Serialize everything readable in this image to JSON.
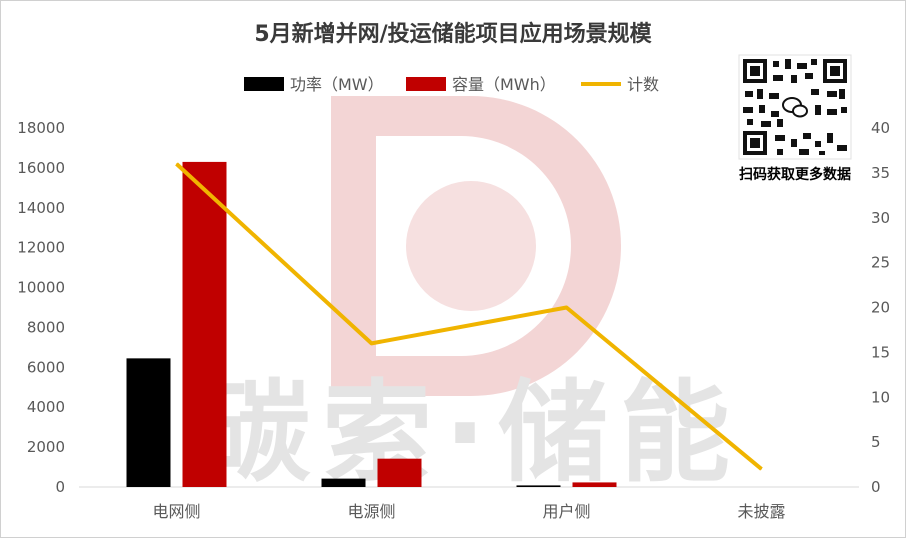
{
  "colors": {
    "power": "#000000",
    "capacity": "#c00000",
    "count": "#f0b400",
    "axis_text": "#595959",
    "watermark": "#f3d5d5"
  },
  "watermark": {
    "text": "碳索·储能"
  },
  "qr": {
    "caption": "扫码获取更多数据"
  },
  "chart_data": {
    "type": "bar",
    "title": "5月新增并网/投运储能项目应用场景规模",
    "categories": [
      "电网侧",
      "电源侧",
      "用户侧",
      "未披露"
    ],
    "series": [
      {
        "name": "功率（MW）",
        "kind": "bar",
        "axis": "left",
        "values": [
          6450,
          420,
          80,
          0
        ]
      },
      {
        "name": "容量（MWh）",
        "kind": "bar",
        "axis": "left",
        "values": [
          16300,
          1420,
          230,
          0
        ]
      },
      {
        "name": "计数",
        "kind": "line",
        "axis": "right",
        "values": [
          36,
          16,
          20,
          2
        ]
      }
    ],
    "y_left": {
      "min": 0,
      "max": 18000,
      "ticks": [
        "0",
        "2000",
        "4000",
        "6000",
        "8000",
        "10000",
        "12000",
        "14000",
        "16000",
        "18000"
      ]
    },
    "y_right": {
      "min": 0,
      "max": 40,
      "ticks": [
        "0",
        "5",
        "10",
        "15",
        "20",
        "25",
        "30",
        "35",
        "40"
      ]
    },
    "grid": false,
    "legend_position": "top"
  }
}
